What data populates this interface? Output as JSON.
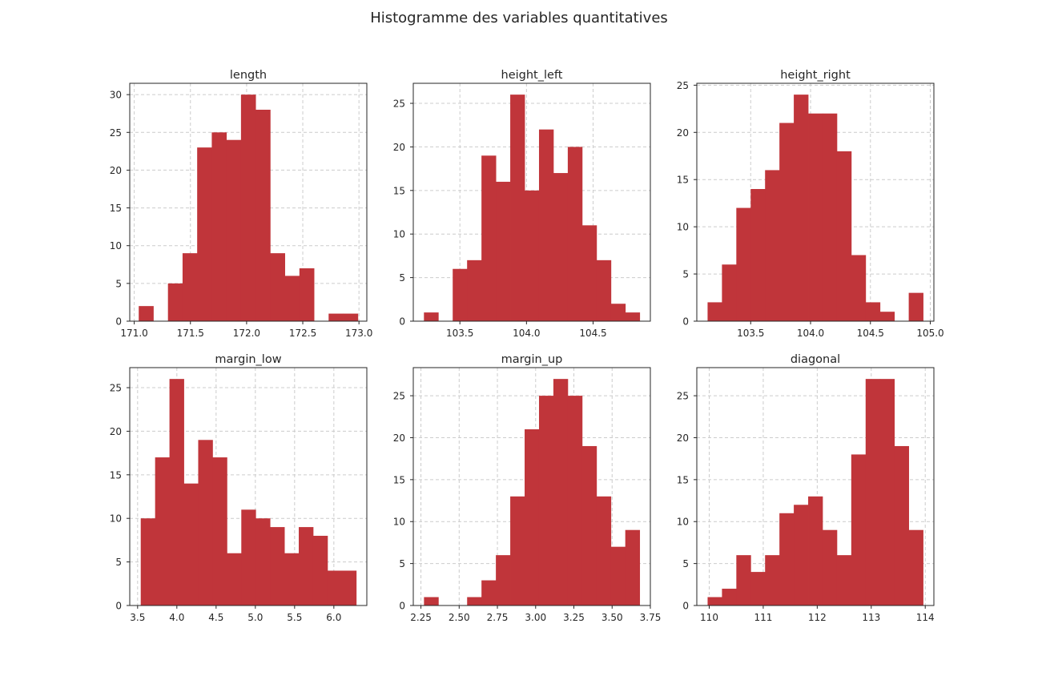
{
  "title": "Histogramme des variables quantitatives",
  "colors": {
    "bar": "#c0353a",
    "grid": "#cccccc",
    "axis": "#262626"
  },
  "chart_data": [
    {
      "type": "bar",
      "title": "length",
      "bin_edges": [
        171.04,
        171.17,
        171.3,
        171.43,
        171.56,
        171.69,
        171.82,
        171.95,
        172.08,
        172.21,
        172.34,
        172.47,
        172.6,
        172.73,
        172.86,
        172.99
      ],
      "values": [
        2,
        0,
        5,
        9,
        23,
        25,
        24,
        30,
        28,
        9,
        6,
        7,
        0,
        1,
        1
      ],
      "xlim": [
        170.96,
        173.07
      ],
      "ylim": [
        0,
        31.5
      ],
      "xticks": [
        "171.0",
        "171.5",
        "172.0",
        "172.5",
        "173.0"
      ],
      "yticks": [
        "0",
        "5",
        "10",
        "15",
        "20",
        "25",
        "30"
      ],
      "grid": true
    },
    {
      "type": "bar",
      "title": "height_left",
      "bin_edges": [
        103.23,
        103.338,
        103.446,
        103.554,
        103.662,
        103.77,
        103.878,
        103.986,
        104.094,
        104.202,
        104.31,
        104.418,
        104.526,
        104.634,
        104.742,
        104.85
      ],
      "values": [
        1,
        0,
        6,
        7,
        19,
        16,
        26,
        15,
        22,
        17,
        20,
        11,
        7,
        2,
        1
      ],
      "xlim": [
        103.15,
        104.93
      ],
      "ylim": [
        0,
        27.3
      ],
      "xticks": [
        "103.5",
        "104.0",
        "104.5"
      ],
      "yticks": [
        "0",
        "5",
        "10",
        "15",
        "20",
        "25"
      ],
      "grid": true
    },
    {
      "type": "bar",
      "title": "height_right",
      "bin_edges": [
        103.14,
        103.26,
        103.38,
        103.5,
        103.62,
        103.74,
        103.86,
        103.98,
        104.1,
        104.22,
        104.34,
        104.46,
        104.58,
        104.7,
        104.82,
        104.94
      ],
      "values": [
        2,
        6,
        12,
        14,
        16,
        21,
        24,
        22,
        22,
        18,
        7,
        2,
        1,
        0,
        3
      ],
      "xlim": [
        103.05,
        105.03
      ],
      "ylim": [
        0,
        25.2
      ],
      "xticks": [
        "103.5",
        "104.0",
        "104.5",
        "105.0"
      ],
      "yticks": [
        "0",
        "5",
        "10",
        "15",
        "20",
        "25"
      ],
      "grid": true
    },
    {
      "type": "bar",
      "title": "margin_low",
      "bin_edges": [
        3.54,
        3.723,
        3.906,
        4.089,
        4.272,
        4.455,
        4.638,
        4.821,
        5.004,
        5.187,
        5.37,
        5.553,
        5.736,
        5.919,
        6.102,
        6.285
      ],
      "values": [
        10,
        17,
        26,
        14,
        19,
        17,
        6,
        11,
        10,
        9,
        6,
        9,
        8,
        4,
        4
      ],
      "xlim": [
        3.4,
        6.42
      ],
      "ylim": [
        0,
        27.3
      ],
      "xticks": [
        "3.5",
        "4.0",
        "4.5",
        "5.0",
        "5.5",
        "6.0"
      ],
      "yticks": [
        "0",
        "5",
        "10",
        "15",
        "20",
        "25"
      ],
      "grid": true
    },
    {
      "type": "bar",
      "title": "margin_up",
      "bin_edges": [
        2.27,
        2.364,
        2.458,
        2.552,
        2.646,
        2.74,
        2.834,
        2.928,
        3.022,
        3.116,
        3.21,
        3.304,
        3.398,
        3.492,
        3.586,
        3.68
      ],
      "values": [
        1,
        0,
        0,
        1,
        3,
        6,
        13,
        21,
        25,
        27,
        25,
        19,
        13,
        7,
        9
      ],
      "xlim": [
        2.2,
        3.75
      ],
      "ylim": [
        0,
        28.35
      ],
      "xticks": [
        "2.25",
        "2.50",
        "2.75",
        "3.00",
        "3.25",
        "3.50",
        "3.75"
      ],
      "yticks": [
        "0",
        "5",
        "10",
        "15",
        "20",
        "25"
      ],
      "grid": true
    },
    {
      "type": "bar",
      "title": "diagonal",
      "bin_edges": [
        109.97,
        110.236,
        110.502,
        110.768,
        111.034,
        111.3,
        111.566,
        111.832,
        112.098,
        112.364,
        112.63,
        112.896,
        113.162,
        113.428,
        113.694,
        113.96
      ],
      "values": [
        1,
        2,
        6,
        4,
        6,
        11,
        12,
        13,
        9,
        6,
        18,
        27,
        27,
        19,
        9
      ],
      "xlim": [
        109.77,
        114.16
      ],
      "ylim": [
        0,
        28.35
      ],
      "xticks": [
        "110",
        "111",
        "112",
        "113",
        "114"
      ],
      "yticks": [
        "0",
        "5",
        "10",
        "15",
        "20",
        "25"
      ],
      "grid": true
    }
  ]
}
